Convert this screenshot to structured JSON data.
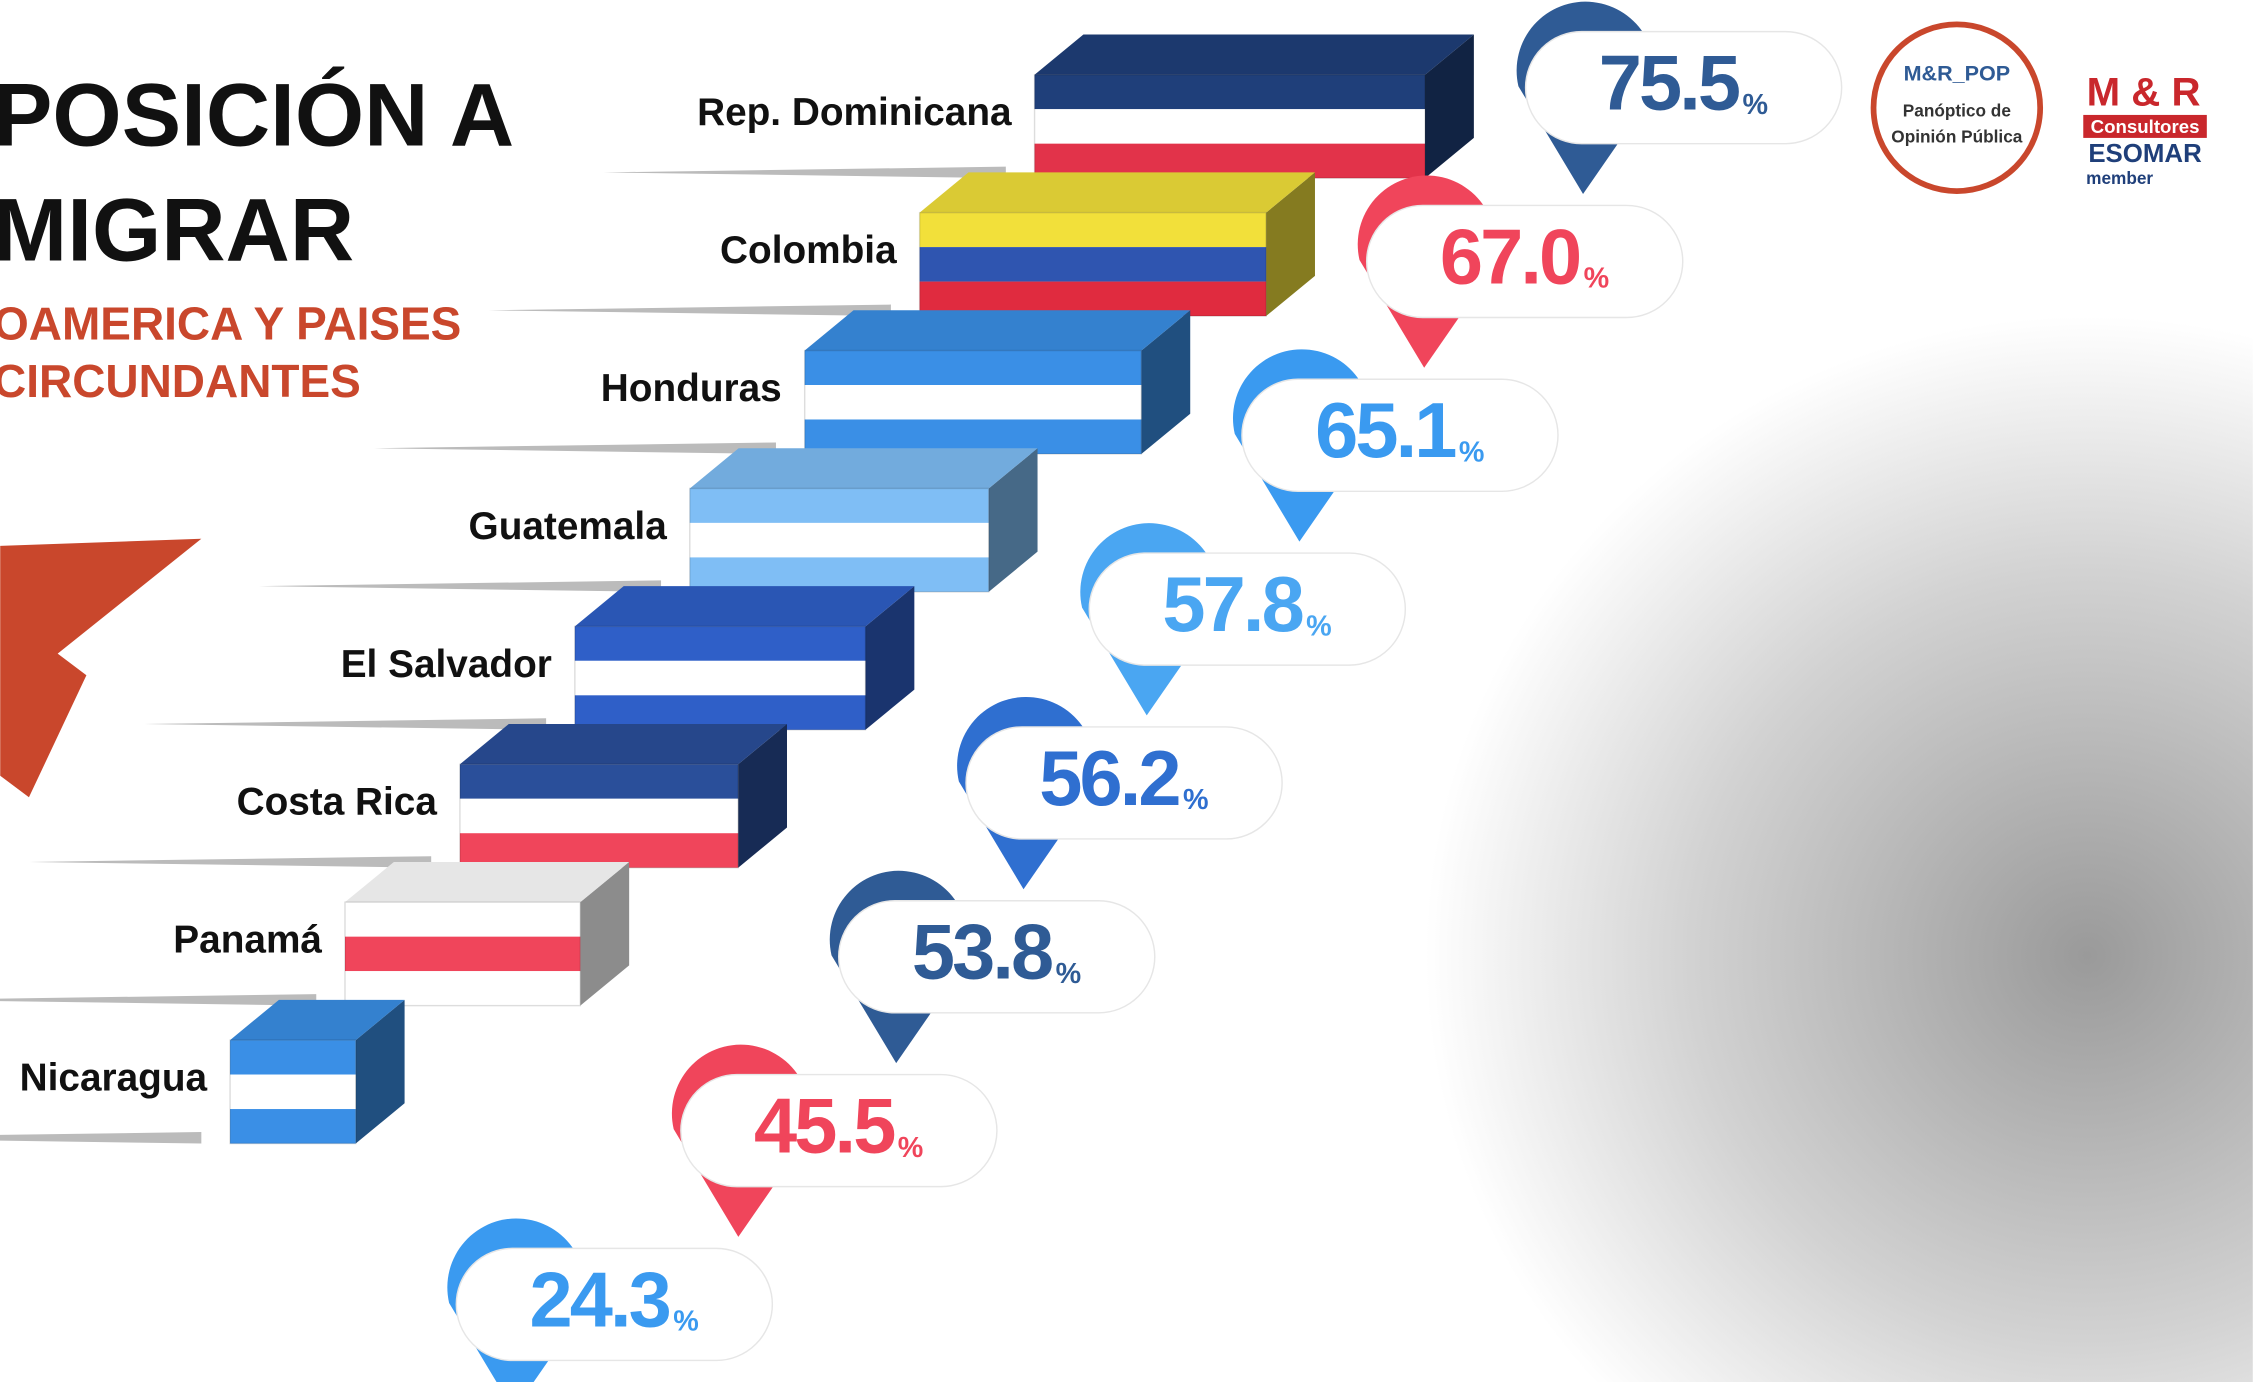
{
  "chart_data": {
    "type": "bar",
    "title_lines": [
      "POSICIÓN A",
      "MIGRAR"
    ],
    "subtitle_lines": [
      "OAMERICA Y PAISES",
      "CIRCUNDANTES"
    ],
    "categories": [
      "Rep. Dominicana",
      "Colombia",
      "Honduras",
      "Guatemala",
      "El Salvador",
      "Costa Rica",
      "Panamá",
      "Nicaragua"
    ],
    "values": [
      75.5,
      67.0,
      65.1,
      57.8,
      56.2,
      53.8,
      45.5,
      24.3
    ],
    "value_labels": [
      "75.5",
      "67.0",
      "65.1",
      "57.8",
      "56.2",
      "53.8",
      "45.5",
      "24.3"
    ],
    "unit": "%",
    "colors": [
      "#2f5b95",
      "#f0455b",
      "#3a9af0",
      "#4aa6f2",
      "#2f6fd0",
      "#2f5b95",
      "#f0455b",
      "#3a9af0"
    ],
    "flags": [
      [
        "#1f3f7a",
        "#ffffff",
        "#e2334a"
      ],
      [
        "#f2e03a",
        "#2f55b0",
        "#e02b3f"
      ],
      [
        "#3a8fe6",
        "#ffffff",
        "#3a8fe6"
      ],
      [
        "#7fbef5",
        "#ffffff",
        "#7fbef5"
      ],
      [
        "#2f5fc8",
        "#ffffff",
        "#2f5fc8"
      ],
      [
        "#2a4f9a",
        "#ffffff",
        "#f0455b"
      ],
      [
        "#ffffff",
        "#f0455b",
        "#ffffff"
      ],
      [
        "#3a8fe6",
        "#ffffff",
        "#3a8fe6"
      ]
    ],
    "logo_left": [
      "M&R_POP",
      "Panóptico de",
      "Opinión Pública"
    ],
    "logo_right": [
      "M & R",
      "Consultores",
      "ESOMAR",
      "member"
    ]
  }
}
